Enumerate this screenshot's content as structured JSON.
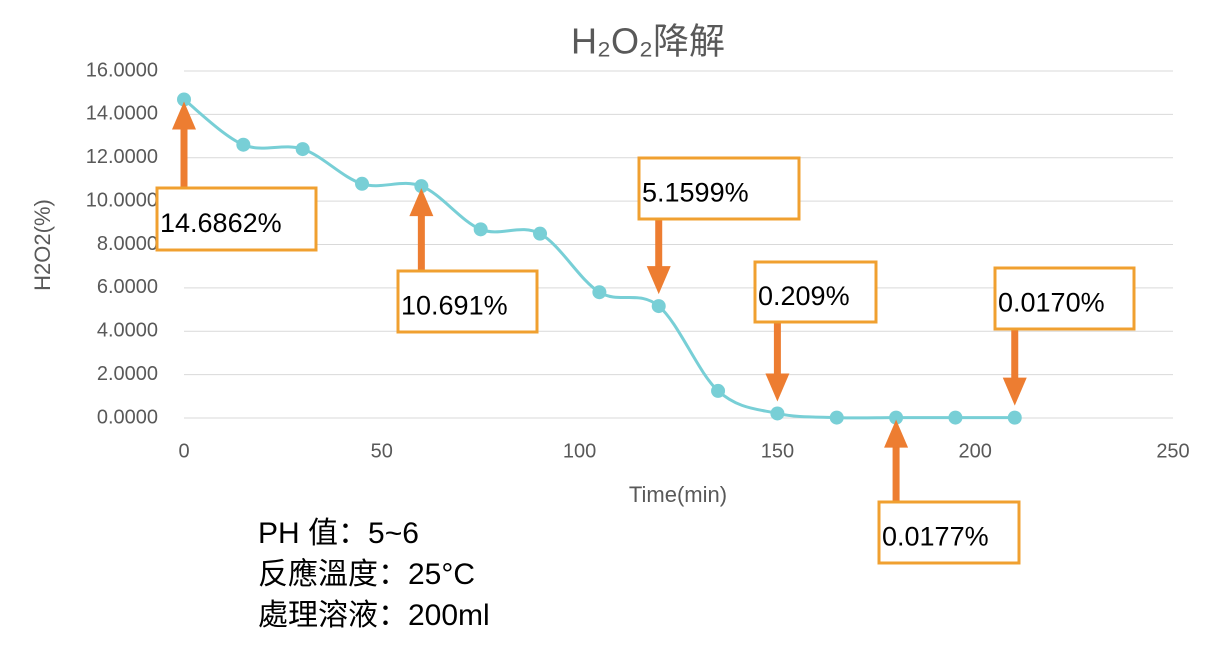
{
  "chart_data": {
    "type": "line",
    "title": "H₂O₂降解",
    "x_label": "Time(min)",
    "y_label": "H2O2(%)",
    "x": [
      0,
      15,
      30,
      45,
      60,
      75,
      90,
      105,
      120,
      135,
      150,
      165,
      180,
      195,
      210
    ],
    "series": [
      {
        "name": "H2O2",
        "color": "#78cfd6",
        "values": [
          14.6862,
          12.6,
          12.4,
          10.8,
          10.691,
          8.7,
          8.5,
          5.8,
          5.1599,
          1.25,
          0.209,
          0.02,
          0.0177,
          0.02,
          0.017
        ],
        "value_labels": [
          "14.6862%",
          null,
          null,
          null,
          "10.691%",
          null,
          null,
          null,
          "5.1599%",
          null,
          "0.209%",
          null,
          "0.0177%",
          null,
          "0.0170%"
        ]
      }
    ],
    "xlim": [
      0,
      250
    ],
    "xticks": [
      0,
      50,
      100,
      150,
      200,
      250
    ],
    "ylim": [
      0,
      16
    ],
    "yticks": [
      {
        "value": 0,
        "label": "0.0000"
      },
      {
        "value": 2,
        "label": "2.0000"
      },
      {
        "value": 4,
        "label": "4.0000"
      },
      {
        "value": 6,
        "label": "6.0000"
      },
      {
        "value": 8,
        "label": "8.0000"
      },
      {
        "value": 10,
        "label": "10.0000"
      },
      {
        "value": 12,
        "label": "12.0000"
      },
      {
        "value": 14,
        "label": "14.0000"
      },
      {
        "value": 16,
        "label": "16.0000"
      }
    ],
    "grid": true,
    "notes": [
      "PH 值：5~6",
      "反應溫度：25°C",
      "處理溶液：200ml"
    ]
  }
}
